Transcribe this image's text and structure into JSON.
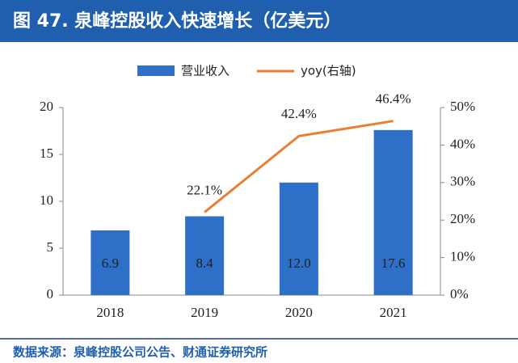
{
  "chart_data": {
    "type": "bar_line",
    "title": "图 47. 泉峰控股收入快速增长（亿美元）",
    "source": "数据来源：泉峰控股公司公告、财通证券研究所",
    "categories": [
      "2018",
      "2019",
      "2020",
      "2021"
    ],
    "series": [
      {
        "name": "营业收入",
        "type": "bar",
        "color": "#2e6fc7",
        "values": [
          6.9,
          8.4,
          12.0,
          17.6
        ],
        "value_labels": [
          "6.9",
          "8.4",
          "12.0",
          "17.6"
        ]
      },
      {
        "name": "yoy(右轴)",
        "type": "line",
        "axis": "y2",
        "color": "#ed7d31",
        "values": [
          null,
          22.1,
          42.4,
          46.4
        ],
        "value_labels": [
          null,
          "22.1%",
          "42.4%",
          "46.4%"
        ]
      }
    ],
    "ylim": [
      0,
      20
    ],
    "yticks": [
      0,
      5,
      10,
      15,
      20
    ],
    "y2lim": [
      0,
      50
    ],
    "y2ticks": [
      {
        "value": 0,
        "label": "0%"
      },
      {
        "value": 10,
        "label": "10%"
      },
      {
        "value": 20,
        "label": "20%"
      },
      {
        "value": 30,
        "label": "30%"
      },
      {
        "value": 40,
        "label": "40%"
      },
      {
        "value": 50,
        "label": "50%"
      }
    ]
  }
}
